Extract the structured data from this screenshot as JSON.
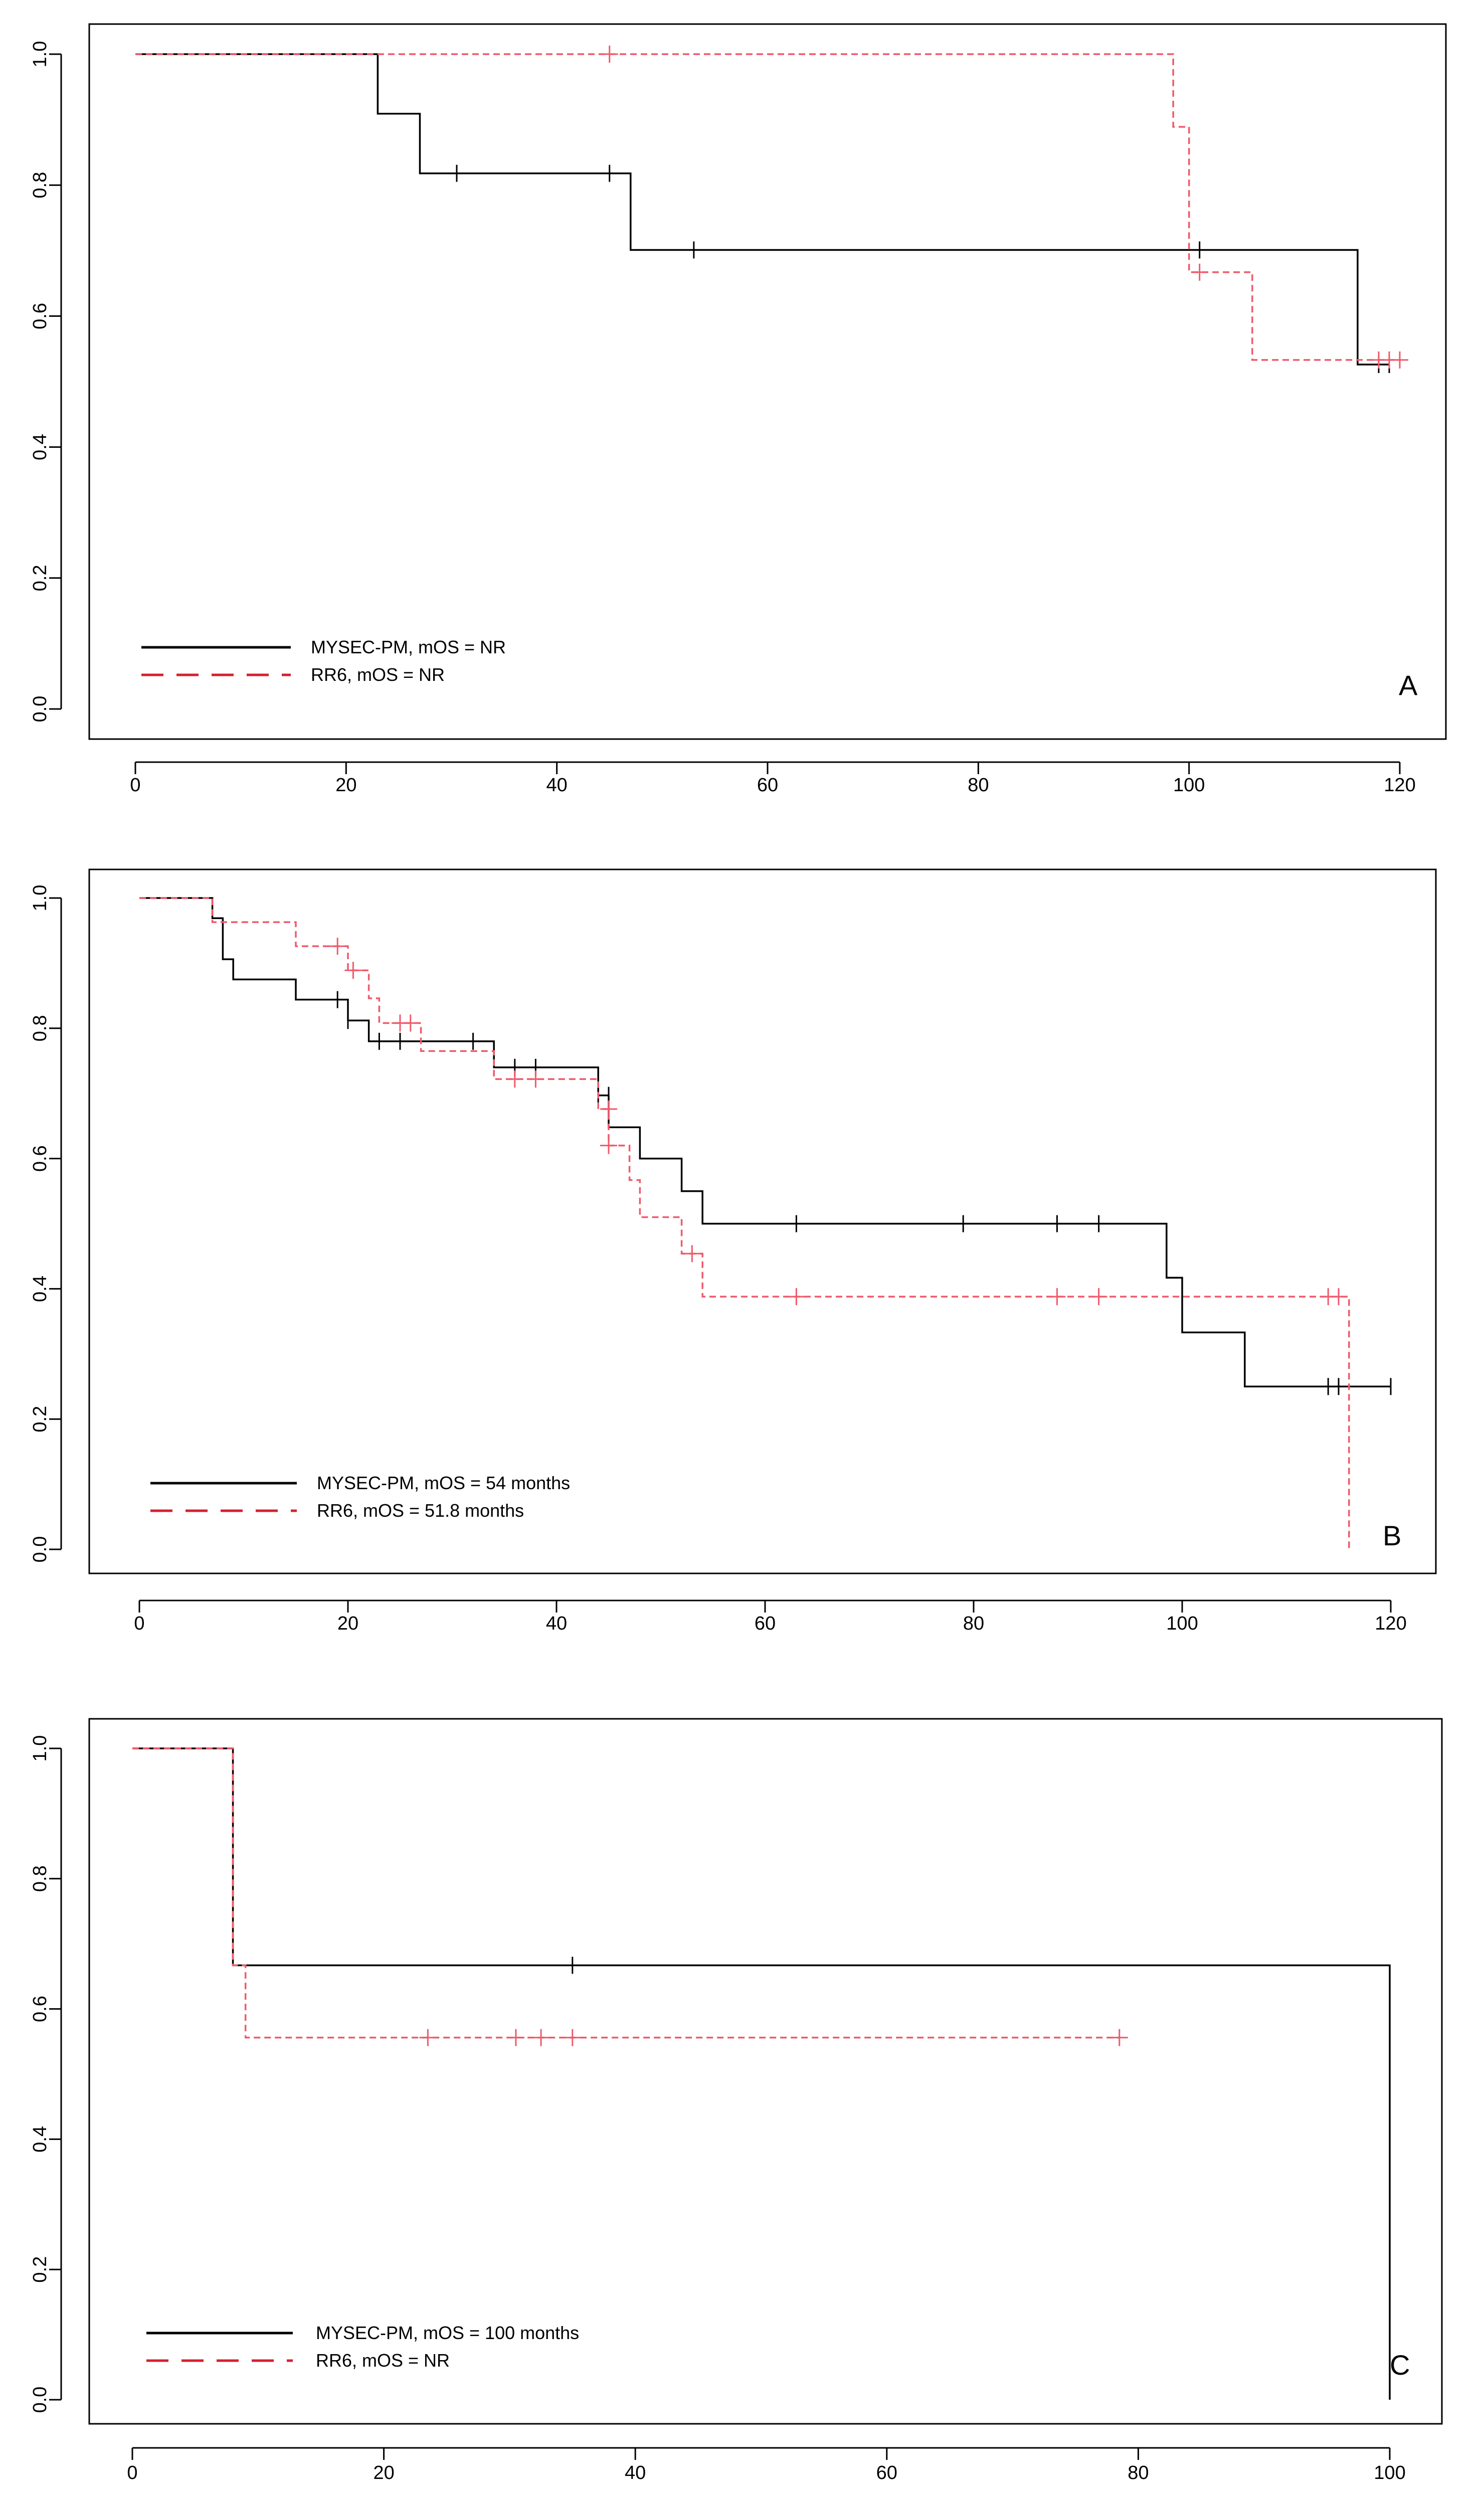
{
  "colors": {
    "mysec": "#000000",
    "rr6": "#ef5a6b",
    "rr6_legend": "#d61f2e"
  },
  "chart_data": [
    {
      "type": "line",
      "subtype": "kaplan-meier",
      "panel_label": "A",
      "xlim": [
        0,
        120
      ],
      "ylim": [
        0,
        1
      ],
      "xticks": [
        0,
        20,
        40,
        60,
        80,
        100,
        120
      ],
      "yticks": [
        0.0,
        0.2,
        0.4,
        0.6,
        0.8,
        1.0
      ],
      "xtick_labels": [
        "0",
        "20",
        "40",
        "60",
        "80",
        "100",
        "120"
      ],
      "ytick_labels": [
        "0.0",
        "0.2",
        "0.4",
        "0.6",
        "0.8",
        "1.0"
      ],
      "legend_position": "bottom-left",
      "series": [
        {
          "name": "MYSEC-PM, mOS = NR",
          "style": "solid",
          "steps": [
            [
              0,
              1.0
            ],
            [
              23,
              0.909
            ],
            [
              27,
              0.818
            ],
            [
              47,
              0.701
            ],
            [
              116,
              0.526
            ],
            [
              119,
              0.526
            ]
          ],
          "censored": [
            [
              30.5,
              0.818
            ],
            [
              45,
              0.818
            ],
            [
              53,
              0.701
            ],
            [
              101,
              0.701
            ],
            [
              118,
              0.526
            ],
            [
              119,
              0.526
            ]
          ]
        },
        {
          "name": "RR6, mOS = NR",
          "style": "dashed",
          "steps": [
            [
              0,
              1.0
            ],
            [
              98.5,
              0.889
            ],
            [
              100,
              0.667
            ],
            [
              106,
              0.533
            ],
            [
              120,
              0.533
            ]
          ],
          "censored": [
            [
              45,
              1.0
            ],
            [
              101,
              0.667
            ],
            [
              118,
              0.533
            ],
            [
              119,
              0.533
            ],
            [
              120,
              0.533
            ]
          ]
        }
      ]
    },
    {
      "type": "line",
      "subtype": "kaplan-meier",
      "panel_label": "B",
      "xlim": [
        0,
        120
      ],
      "ylim": [
        0,
        1
      ],
      "xticks": [
        0,
        20,
        40,
        60,
        80,
        100,
        120
      ],
      "yticks": [
        0.0,
        0.2,
        0.4,
        0.6,
        0.8,
        1.0
      ],
      "xtick_labels": [
        "0",
        "20",
        "40",
        "60",
        "80",
        "100",
        "120"
      ],
      "ytick_labels": [
        "0.0",
        "0.2",
        "0.4",
        "0.6",
        "0.8",
        "1.0"
      ],
      "legend_position": "bottom-left",
      "series": [
        {
          "name": "MYSEC-PM, mOS = 54 months",
          "style": "solid",
          "steps": [
            [
              0,
              1.0
            ],
            [
              7,
              0.969
            ],
            [
              8,
              0.906
            ],
            [
              9,
              0.875
            ],
            [
              15,
              0.844
            ],
            [
              20,
              0.812
            ],
            [
              22,
              0.78
            ],
            [
              34,
              0.74
            ],
            [
              44,
              0.697
            ],
            [
              45,
              0.648
            ],
            [
              48,
              0.6
            ],
            [
              52,
              0.55
            ],
            [
              54,
              0.5
            ],
            [
              98.5,
              0.417
            ],
            [
              100,
              0.333
            ],
            [
              106,
              0.25
            ],
            [
              120,
              0.25
            ]
          ],
          "censored": [
            [
              19,
              0.844
            ],
            [
              20,
              0.812
            ],
            [
              23,
              0.78
            ],
            [
              25,
              0.78
            ],
            [
              32,
              0.78
            ],
            [
              36,
              0.74
            ],
            [
              38,
              0.74
            ],
            [
              44,
              0.697
            ],
            [
              45,
              0.697
            ],
            [
              63,
              0.5
            ],
            [
              79,
              0.5
            ],
            [
              88,
              0.5
            ],
            [
              92,
              0.5
            ],
            [
              114,
              0.25
            ],
            [
              115,
              0.25
            ],
            [
              120,
              0.25
            ]
          ]
        },
        {
          "name": "RR6, mOS = 51.8 months",
          "style": "dashed",
          "steps": [
            [
              0,
              1.0
            ],
            [
              7,
              0.963
            ],
            [
              15,
              0.926
            ],
            [
              20,
              0.889
            ],
            [
              22,
              0.846
            ],
            [
              23,
              0.808
            ],
            [
              27,
              0.765
            ],
            [
              34,
              0.722
            ],
            [
              44,
              0.676
            ],
            [
              45,
              0.62
            ],
            [
              47,
              0.567
            ],
            [
              48,
              0.51
            ],
            [
              52,
              0.454
            ],
            [
              54,
              0.388
            ],
            [
              116,
              0.0
            ]
          ],
          "censored": [
            [
              19,
              0.926
            ],
            [
              20.5,
              0.889
            ],
            [
              25,
              0.808
            ],
            [
              26,
              0.808
            ],
            [
              36,
              0.722
            ],
            [
              38,
              0.722
            ],
            [
              45,
              0.676
            ],
            [
              45,
              0.62
            ],
            [
              53,
              0.454
            ],
            [
              63,
              0.388
            ],
            [
              88,
              0.388
            ],
            [
              92,
              0.388
            ],
            [
              114,
              0.388
            ],
            [
              115,
              0.388
            ]
          ]
        }
      ]
    },
    {
      "type": "line",
      "subtype": "kaplan-meier",
      "panel_label": "C",
      "xlim": [
        0,
        100
      ],
      "ylim": [
        0,
        1
      ],
      "xticks": [
        0,
        20,
        40,
        60,
        80,
        100
      ],
      "yticks": [
        0.0,
        0.2,
        0.4,
        0.6,
        0.8,
        1.0
      ],
      "xtick_labels": [
        "0",
        "20",
        "40",
        "60",
        "80",
        "100"
      ],
      "ytick_labels": [
        "0.0",
        "0.2",
        "0.4",
        "0.6",
        "0.8",
        "1.0"
      ],
      "legend_position": "bottom-left",
      "series": [
        {
          "name": "MYSEC-PM, mOS = 100 months",
          "style": "solid",
          "steps": [
            [
              0,
              1.0
            ],
            [
              8,
              0.667
            ],
            [
              100,
              0.0
            ]
          ],
          "censored": [
            [
              35,
              0.667
            ]
          ]
        },
        {
          "name": "RR6, mOS = NR",
          "style": "dashed",
          "steps": [
            [
              0,
              1.0
            ],
            [
              8,
              0.667
            ],
            [
              9,
              0.556
            ],
            [
              78.5,
              0.556
            ]
          ],
          "censored": [
            [
              23.5,
              0.556
            ],
            [
              30.5,
              0.556
            ],
            [
              32.5,
              0.556
            ],
            [
              35,
              0.556
            ],
            [
              78.5,
              0.556
            ]
          ]
        }
      ]
    }
  ]
}
